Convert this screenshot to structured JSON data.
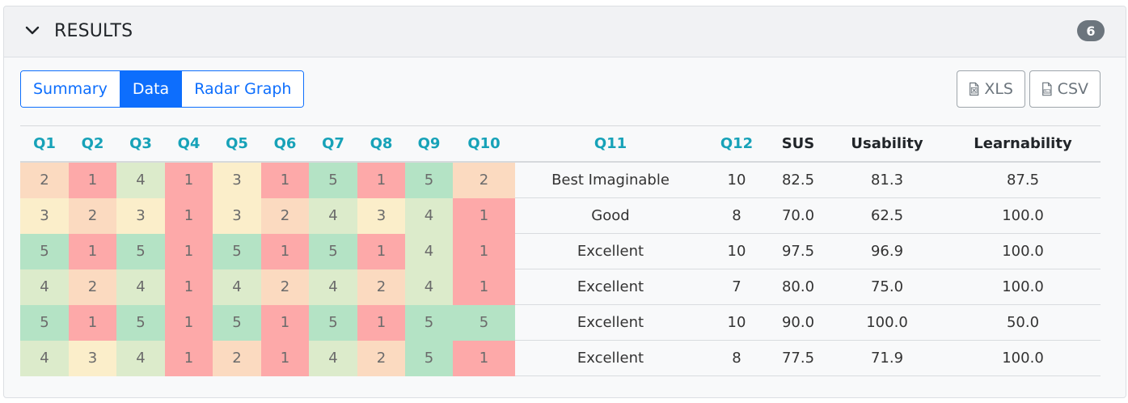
{
  "header": {
    "title": "RESULTS",
    "count": "6",
    "toggle_icon": "chevron-down-icon"
  },
  "tabs": [
    {
      "label": "Summary",
      "active": false
    },
    {
      "label": "Data",
      "active": true
    },
    {
      "label": "Radar Graph",
      "active": false
    }
  ],
  "exports": {
    "xls_label": "XLS",
    "csv_label": "CSV",
    "xls_icon": "xls-file-icon",
    "csv_icon": "csv-file-icon"
  },
  "colors": {
    "accent": "#0d6efd",
    "question_header": "#17a2b8",
    "score_1": "#fda9a9",
    "score_2": "#fbdac0",
    "score_3": "#fbeeca",
    "score_4": "#dcebcb",
    "score_5": "#b4e3c5"
  },
  "table": {
    "columns": [
      "Q1",
      "Q2",
      "Q3",
      "Q4",
      "Q5",
      "Q6",
      "Q7",
      "Q8",
      "Q9",
      "Q10",
      "Q11",
      "Q12",
      "SUS",
      "Usability",
      "Learnability"
    ],
    "rows": [
      {
        "q": [
          "2",
          "1",
          "4",
          "1",
          "3",
          "1",
          "5",
          "1",
          "5",
          "2"
        ],
        "q11": "Best Imaginable",
        "q12": "10",
        "sus": "82.5",
        "usability": "81.3",
        "learnability": "87.5"
      },
      {
        "q": [
          "3",
          "2",
          "3",
          "1",
          "3",
          "2",
          "4",
          "3",
          "4",
          "1"
        ],
        "q11": "Good",
        "q12": "8",
        "sus": "70.0",
        "usability": "62.5",
        "learnability": "100.0"
      },
      {
        "q": [
          "5",
          "1",
          "5",
          "1",
          "5",
          "1",
          "5",
          "1",
          "4",
          "1"
        ],
        "q11": "Excellent",
        "q12": "10",
        "sus": "97.5",
        "usability": "96.9",
        "learnability": "100.0"
      },
      {
        "q": [
          "4",
          "2",
          "4",
          "1",
          "4",
          "2",
          "4",
          "2",
          "4",
          "1"
        ],
        "q11": "Excellent",
        "q12": "7",
        "sus": "80.0",
        "usability": "75.0",
        "learnability": "100.0"
      },
      {
        "q": [
          "5",
          "1",
          "5",
          "1",
          "5",
          "1",
          "5",
          "1",
          "5",
          "5"
        ],
        "q11": "Excellent",
        "q12": "10",
        "sus": "90.0",
        "usability": "100.0",
        "learnability": "50.0"
      },
      {
        "q": [
          "4",
          "3",
          "4",
          "1",
          "2",
          "1",
          "4",
          "2",
          "5",
          "1"
        ],
        "q11": "Excellent",
        "q12": "8",
        "sus": "77.5",
        "usability": "71.9",
        "learnability": "100.0"
      }
    ]
  }
}
